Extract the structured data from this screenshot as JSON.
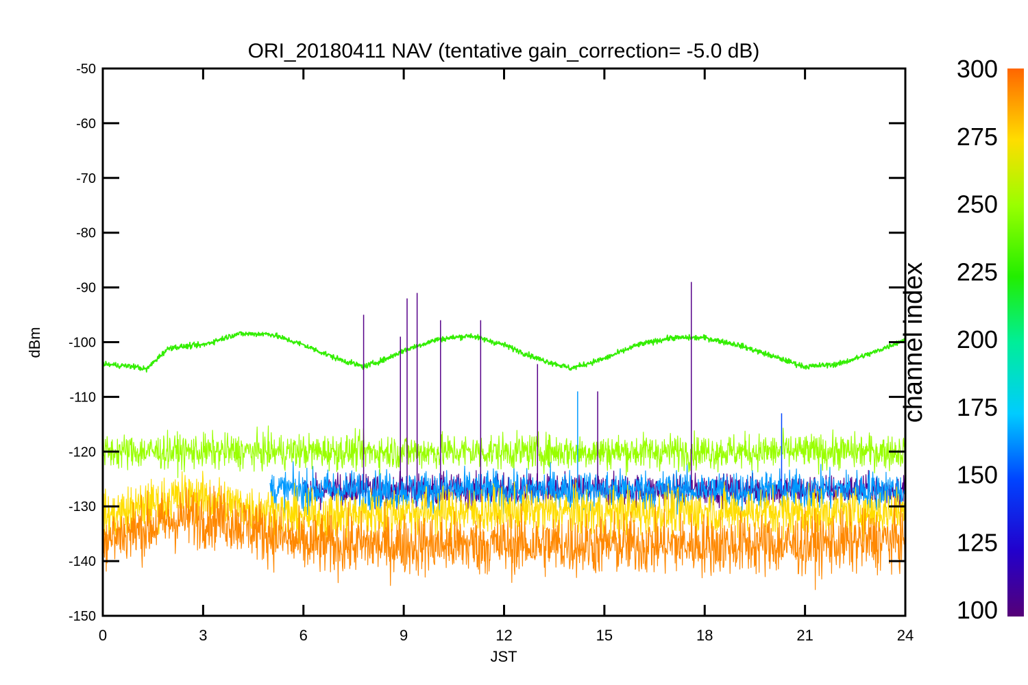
{
  "chart_data": {
    "type": "line",
    "title": "ORI_20180411 NAV (tentative gain_correction= -5.0 dB)",
    "xlabel": "JST",
    "ylabel": "dBm",
    "xlim": [
      0,
      24
    ],
    "ylim": [
      -150,
      -50
    ],
    "x_ticks": [
      "0",
      "3",
      "6",
      "9",
      "12",
      "15",
      "18",
      "21",
      "24"
    ],
    "y_ticks": [
      "-50",
      "-60",
      "-70",
      "-80",
      "-90",
      "-100",
      "-110",
      "-120",
      "-130",
      "-140",
      "-150"
    ],
    "colorbar": {
      "label": "channel index",
      "range": [
        100,
        300
      ],
      "ticks": [
        "100",
        "125",
        "150",
        "175",
        "200",
        "225",
        "250",
        "275",
        "300"
      ]
    },
    "grid": false,
    "series": [
      {
        "channel": 240,
        "color": "#33ee00",
        "x": [
          0,
          1,
          1.3,
          1.8,
          2,
          3,
          4,
          5,
          6,
          7,
          7.8,
          8.5,
          9,
          10,
          11,
          12,
          13,
          14,
          15,
          16,
          17,
          18,
          19,
          20,
          21,
          22,
          23,
          24
        ],
        "y": [
          -104,
          -104.5,
          -105,
          -102,
          -101,
          -100.5,
          -98.5,
          -98.5,
          -100.5,
          -103,
          -104.5,
          -103,
          -101.5,
          -99.5,
          -98.8,
          -100.5,
          -103,
          -104.8,
          -103,
          -100.5,
          -99.2,
          -99.2,
          -100.5,
          -102.5,
          -104.5,
          -104,
          -102,
          -99.5
        ]
      },
      {
        "channel": 260,
        "color": "#99ff00",
        "x": [
          0,
          3,
          6,
          9,
          12,
          15,
          18,
          21,
          24
        ],
        "y": [
          -120,
          -120,
          -120,
          -120,
          -120,
          -120,
          -120,
          -120,
          -120
        ]
      },
      {
        "channel": 285,
        "color": "#ffdd00",
        "x": [
          0,
          2.5,
          6,
          9,
          12,
          15,
          18,
          21,
          24
        ],
        "y": [
          -132,
          -128,
          -132,
          -131,
          -131,
          -131,
          -131,
          -131,
          -131
        ]
      },
      {
        "channel": 300,
        "color": "#ff8800",
        "x": [
          0,
          2.5,
          3.5,
          6,
          9,
          12,
          15,
          18,
          21,
          24
        ],
        "y": [
          -136,
          -132,
          -132,
          -137,
          -137,
          -137,
          -137,
          -137,
          -137,
          -136
        ]
      },
      {
        "channel": 110,
        "color": "#550088",
        "x": [
          6,
          9,
          12,
          15,
          18,
          21,
          24
        ],
        "y": [
          -127,
          -127,
          -127,
          -127,
          -127,
          -127,
          -127
        ]
      },
      {
        "channel": 160,
        "color": "#0099ff",
        "x": [
          5,
          9,
          12,
          15,
          18,
          21,
          24
        ],
        "y": [
          -127,
          -127,
          -127,
          -127,
          -127,
          -127,
          -127
        ]
      }
    ],
    "spikes": [
      {
        "x": 7.8,
        "y": -95,
        "channel": 110
      },
      {
        "x": 8.9,
        "y": -99,
        "channel": 110
      },
      {
        "x": 9.1,
        "y": -92,
        "channel": 110
      },
      {
        "x": 9.4,
        "y": -91,
        "channel": 110
      },
      {
        "x": 10.1,
        "y": -96,
        "channel": 110
      },
      {
        "x": 11.3,
        "y": -96,
        "channel": 110
      },
      {
        "x": 13.0,
        "y": -104,
        "channel": 110
      },
      {
        "x": 14.2,
        "y": -109,
        "channel": 160
      },
      {
        "x": 14.8,
        "y": -109,
        "channel": 110
      },
      {
        "x": 17.6,
        "y": -89,
        "channel": 110
      },
      {
        "x": 20.3,
        "y": -113,
        "channel": 140
      }
    ]
  }
}
